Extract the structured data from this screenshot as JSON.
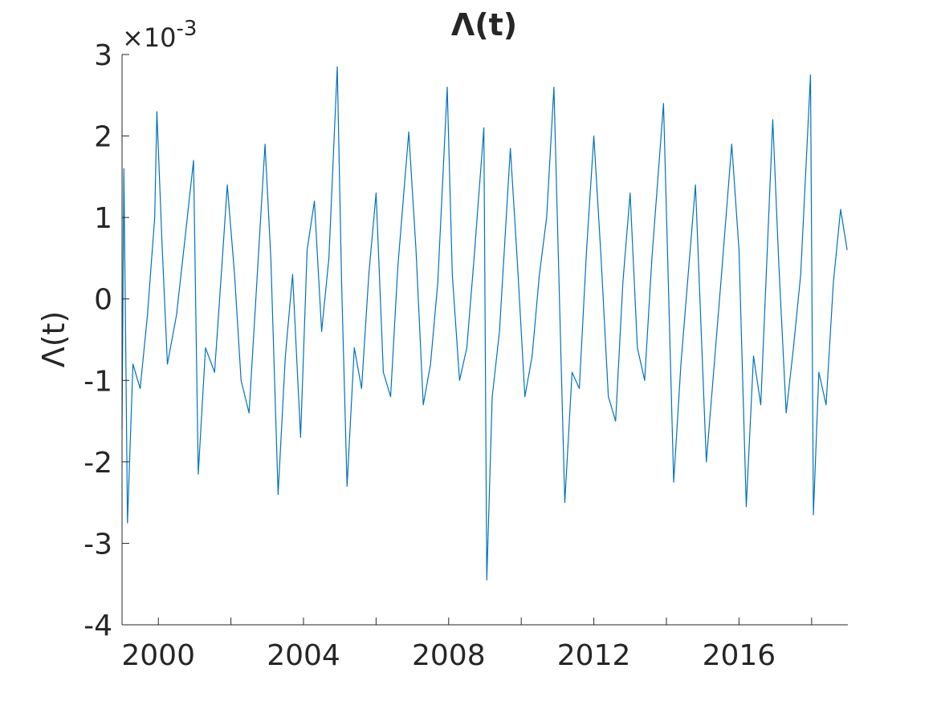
{
  "chart_data": {
    "type": "line",
    "title": "Λ(t)",
    "y_label": "Λ(t)",
    "y_multiplier": {
      "base": "×10",
      "exponent": "-3"
    },
    "xlim": [
      1999,
      2019
    ],
    "xticks": [
      2000,
      2004,
      2008,
      2012,
      2016
    ],
    "xminor_ticks": [
      2002,
      2006,
      2010,
      2014,
      2018
    ],
    "ylim": [
      -4,
      3
    ],
    "yticks": [
      -4,
      -3,
      -2,
      -1,
      0,
      1,
      2,
      3
    ],
    "x": [
      1999.0,
      1999.05,
      1999.1,
      1999.15,
      1999.3,
      1999.5,
      1999.7,
      1999.9,
      1999.96,
      2000.1,
      2000.25,
      2000.5,
      2000.7,
      2000.97,
      2001.1,
      2001.3,
      2001.55,
      2001.75,
      2001.9,
      2002.1,
      2002.28,
      2002.5,
      2002.7,
      2002.94,
      2003.1,
      2003.3,
      2003.5,
      2003.7,
      2003.92,
      2004.1,
      2004.3,
      2004.5,
      2004.7,
      2004.93,
      2005.05,
      2005.2,
      2005.4,
      2005.6,
      2005.8,
      2006.0,
      2006.2,
      2006.4,
      2006.6,
      2006.9,
      2007.1,
      2007.3,
      2007.5,
      2007.7,
      2007.96,
      2008.1,
      2008.3,
      2008.5,
      2008.7,
      2008.97,
      2009.05,
      2009.2,
      2009.4,
      2009.7,
      2009.9,
      2010.1,
      2010.3,
      2010.5,
      2010.7,
      2010.9,
      2011.2,
      2011.4,
      2011.6,
      2011.8,
      2012.0,
      2012.2,
      2012.4,
      2012.6,
      2012.8,
      2013.0,
      2013.2,
      2013.4,
      2013.6,
      2013.92,
      2014.2,
      2014.4,
      2014.6,
      2014.8,
      2015.1,
      2015.3,
      2015.5,
      2015.8,
      2016.0,
      2016.2,
      2016.4,
      2016.6,
      2016.93,
      2017.1,
      2017.3,
      2017.5,
      2017.7,
      2017.97,
      2018.05,
      2018.2,
      2018.4,
      2018.6,
      2018.8,
      2018.98
    ],
    "series": [
      {
        "name": "Λ(t)",
        "color": "#0072bd",
        "values": [
          -1.6,
          1.6,
          -0.5,
          -2.75,
          -0.8,
          -1.1,
          -0.2,
          1.0,
          2.3,
          0.7,
          -0.8,
          -0.2,
          0.6,
          1.7,
          -2.15,
          -0.6,
          -0.9,
          0.4,
          1.4,
          0.3,
          -1.0,
          -1.4,
          0.1,
          1.9,
          0.5,
          -2.4,
          -0.7,
          0.3,
          -1.7,
          0.6,
          1.2,
          -0.4,
          0.5,
          2.85,
          0.2,
          -2.3,
          -0.6,
          -1.1,
          0.3,
          1.3,
          -0.9,
          -1.2,
          0.4,
          2.05,
          0.6,
          -1.3,
          -0.8,
          0.2,
          2.6,
          0.3,
          -1.0,
          -0.6,
          0.5,
          2.1,
          -3.45,
          -1.2,
          -0.4,
          1.85,
          0.4,
          -1.2,
          -0.7,
          0.3,
          1.0,
          2.6,
          -2.5,
          -0.9,
          -1.1,
          0.6,
          2.0,
          0.5,
          -1.2,
          -1.5,
          0.2,
          1.3,
          -0.6,
          -1.0,
          0.5,
          2.4,
          -2.25,
          -0.8,
          0.3,
          1.4,
          -2.0,
          -0.9,
          0.2,
          1.9,
          0.6,
          -2.55,
          -0.7,
          -1.3,
          2.2,
          0.4,
          -1.4,
          -0.6,
          0.3,
          2.75,
          -2.65,
          -0.9,
          -1.3,
          0.2,
          1.1,
          0.6
        ]
      }
    ]
  }
}
